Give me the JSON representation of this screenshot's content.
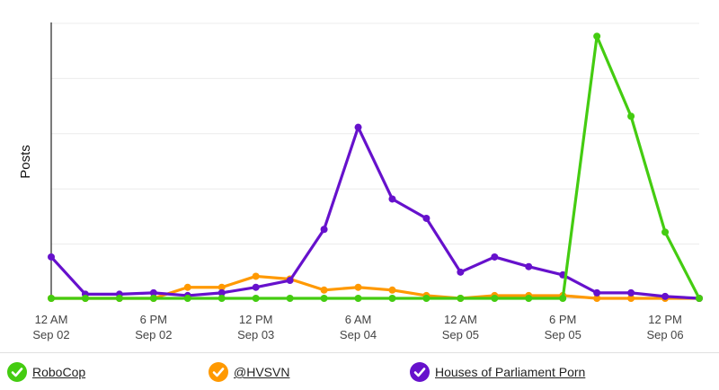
{
  "chart_data": {
    "type": "line",
    "title": "",
    "xlabel": "",
    "ylabel": "Posts",
    "x_tick_labels": [
      {
        "time": "12 AM",
        "date": "Sep 02"
      },
      {
        "time": "6 PM",
        "date": "Sep 02"
      },
      {
        "time": "12 PM",
        "date": "Sep 03"
      },
      {
        "time": "6 AM",
        "date": "Sep 04"
      },
      {
        "time": "12 AM",
        "date": "Sep 05"
      },
      {
        "time": "6 PM",
        "date": "Sep 05"
      },
      {
        "time": "12 PM",
        "date": "Sep 06"
      }
    ],
    "x": [
      "2016-09-02 00:00",
      "2016-09-02 06:00",
      "2016-09-02 12:00",
      "2016-09-02 18:00",
      "2016-09-03 00:00",
      "2016-09-03 06:00",
      "2016-09-03 12:00",
      "2016-09-03 18:00",
      "2016-09-04 00:00",
      "2016-09-04 06:00",
      "2016-09-04 12:00",
      "2016-09-04 18:00",
      "2016-09-05 00:00",
      "2016-09-05 06:00",
      "2016-09-05 12:00",
      "2016-09-05 18:00",
      "2016-09-06 00:00",
      "2016-09-06 06:00",
      "2016-09-06 12:00",
      "2016-09-06 18:00"
    ],
    "ylim": [
      0,
      100
    ],
    "grid": true,
    "legend_position": "bottom",
    "series": [
      {
        "name": "RoboCop",
        "color": "#44cc11",
        "values": [
          0,
          0,
          0,
          0,
          0,
          0,
          0,
          0,
          0,
          0,
          0,
          0,
          0,
          0,
          0,
          0,
          95,
          66,
          24,
          0
        ]
      },
      {
        "name": "@HVSVN",
        "color": "#ff9900",
        "values": [
          0,
          0,
          0,
          0,
          4,
          4,
          8,
          7,
          3,
          4,
          3,
          1,
          0,
          1,
          1,
          1,
          0,
          0,
          0,
          0
        ]
      },
      {
        "name": "Houses of Parliament Porn",
        "color": "#6611cc",
        "values": [
          15,
          1.5,
          1.5,
          2,
          1,
          2,
          4,
          6.5,
          25,
          62,
          36,
          29,
          9.5,
          15,
          11.5,
          8.5,
          2,
          2,
          0.7,
          0
        ]
      }
    ]
  }
}
